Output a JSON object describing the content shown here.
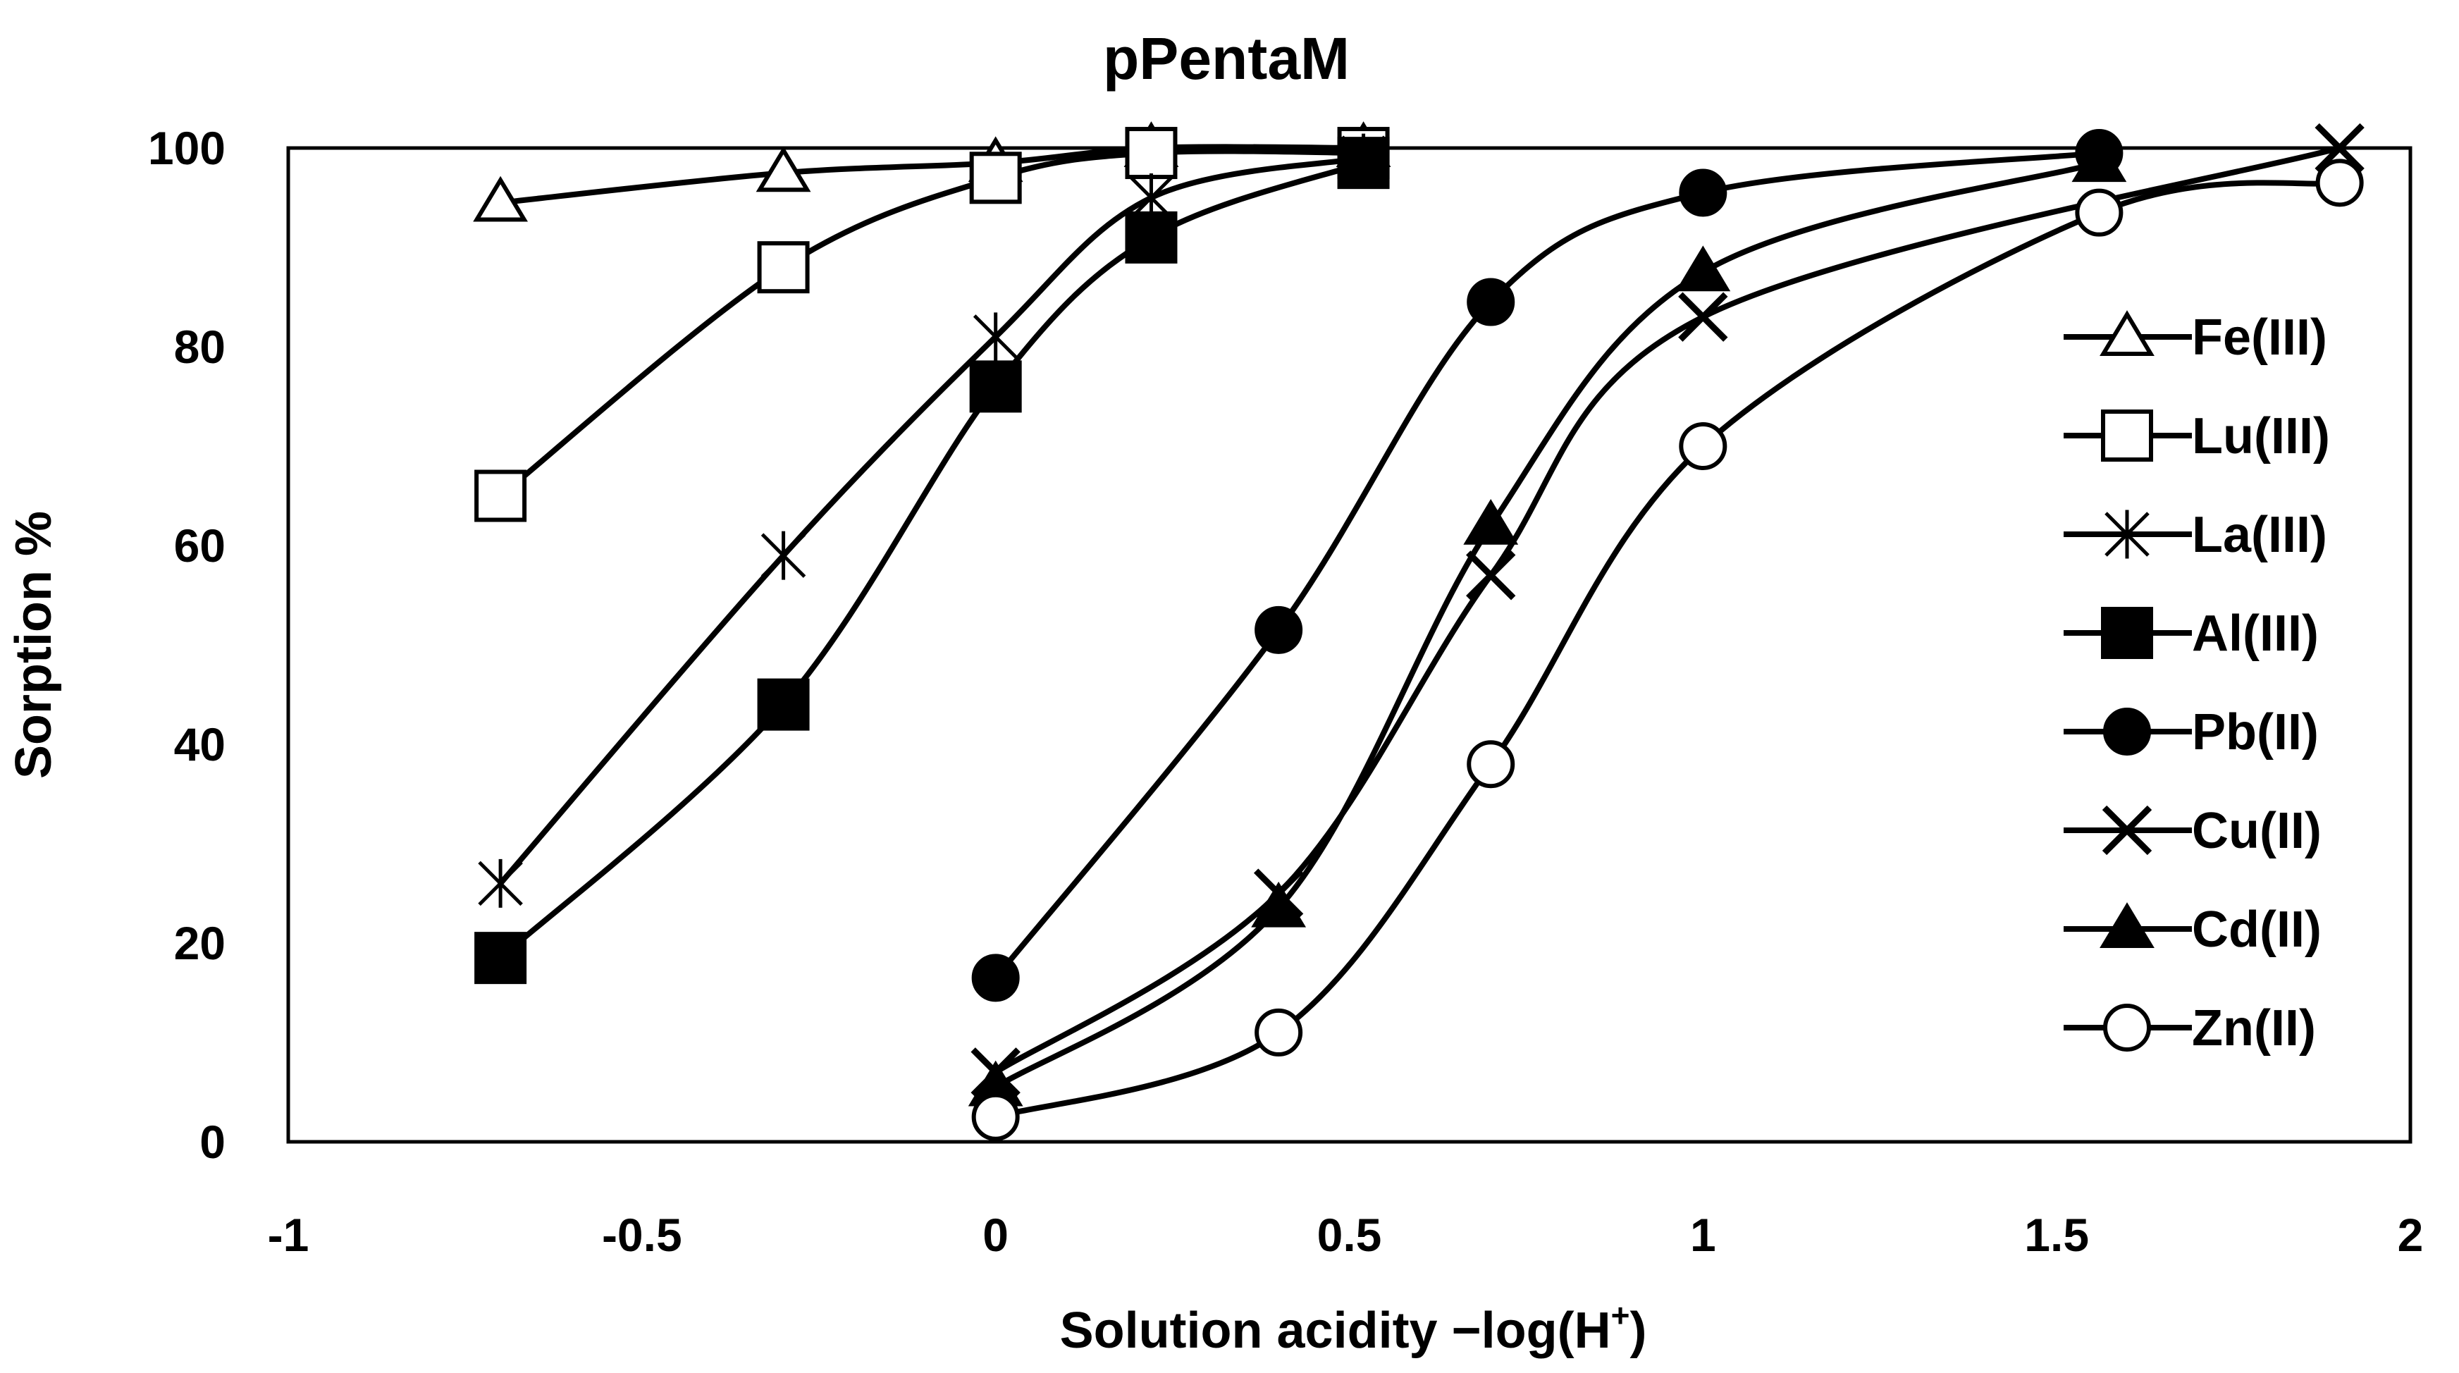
{
  "chart_data": {
    "type": "line",
    "title": "pPentaM",
    "xlabel": "Solution acidity −log(H",
    "xlabel_superscript": "+",
    "xlabel_suffix": ")",
    "ylabel": "Sorption %",
    "xlim": [
      -1,
      2
    ],
    "ylim": [
      0,
      100
    ],
    "xticks": [
      "-1",
      "-0.5",
      "0",
      "0.5",
      "1",
      "1.5",
      "2"
    ],
    "yticks": [
      "0",
      "20",
      "40",
      "60",
      "80",
      "100"
    ],
    "grid": false,
    "legend_position": "right",
    "series": [
      {
        "name": "Fe(III)",
        "marker": "triangle-open",
        "x": [
          -0.7,
          -0.3,
          0,
          0.22,
          0.52
        ],
        "y": [
          94.5,
          97.5,
          98.5,
          100,
          100
        ]
      },
      {
        "name": "Lu(III)",
        "marker": "square-open",
        "x": [
          -0.7,
          -0.3,
          0,
          0.22,
          0.52
        ],
        "y": [
          65,
          88,
          97,
          99.5,
          99.5
        ]
      },
      {
        "name": "La(III)",
        "marker": "asterisk",
        "x": [
          -0.7,
          -0.3,
          0,
          0.22,
          0.52
        ],
        "y": [
          26,
          59,
          81,
          95,
          99
        ]
      },
      {
        "name": "Al(III)",
        "marker": "square-filled",
        "x": [
          -0.7,
          -0.3,
          0,
          0.22,
          0.52
        ],
        "y": [
          18.5,
          44,
          76,
          91,
          98.5
        ]
      },
      {
        "name": "Pb(II)",
        "marker": "circle-filled",
        "x": [
          0,
          0.4,
          0.7,
          1,
          1.56
        ],
        "y": [
          16.5,
          51.5,
          84.5,
          95.5,
          99.5
        ]
      },
      {
        "name": "Cu(II)",
        "marker": "x",
        "x": [
          0,
          0.4,
          0.7,
          1,
          1.9
        ],
        "y": [
          7,
          25,
          57,
          83,
          100
        ]
      },
      {
        "name": "Cd(II)",
        "marker": "triangle-filled",
        "x": [
          0,
          0.4,
          0.7,
          1,
          1.56
        ],
        "y": [
          5.5,
          23.5,
          62,
          87.5,
          98.5
        ]
      },
      {
        "name": "Zn(II)",
        "marker": "circle-open",
        "x": [
          0,
          0.4,
          0.7,
          1,
          1.56,
          1.9
        ],
        "y": [
          2.5,
          11,
          38,
          70,
          93.5,
          96.5
        ]
      }
    ]
  }
}
